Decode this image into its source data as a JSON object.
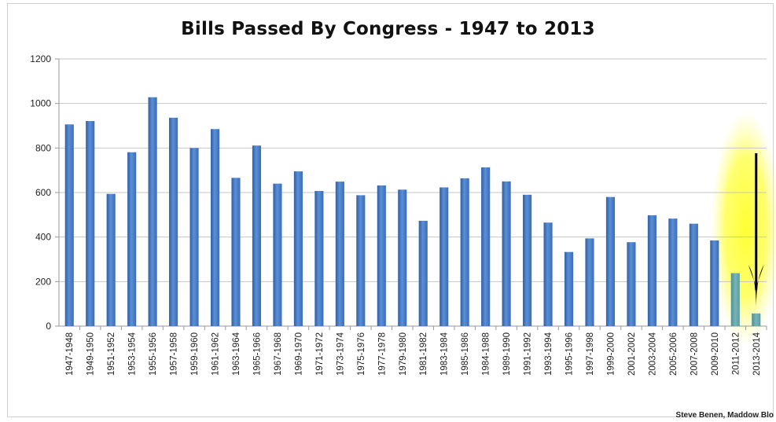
{
  "chart_data": {
    "type": "bar",
    "title": "Bills Passed By Congress - 1947 to 2013",
    "xlabel": "",
    "ylabel": "",
    "ylim": [
      0,
      1200
    ],
    "yticks": [
      0,
      200,
      400,
      600,
      800,
      1000,
      1200
    ],
    "grid": true,
    "legend": "none",
    "colors": {
      "bar": "#4a7ec9",
      "bar_dark": "#2f5fa6",
      "highlighted_bar": "#5f9ea0",
      "highlight_glow": "#ffff00",
      "arrow": "#000000"
    },
    "categories": [
      "1947-1948",
      "1949-1950",
      "1951-1952",
      "1953-1954",
      "1955-1956",
      "1957-1958",
      "1959-1960",
      "1961-1962",
      "1963-1964",
      "1965-1966",
      "1967-1968",
      "1969-1970",
      "1971-1972",
      "1973-1974",
      "1975-1976",
      "1977-1978",
      "1979-1980",
      "1981-1982",
      "1983-1984",
      "1985-1986",
      "1984-1988",
      "1989-1990",
      "1991-1992",
      "1993-1994",
      "1995-1996",
      "1997-1998",
      "1999-2000",
      "2001-2002",
      "2003-2004",
      "2005-2006",
      "2007-2008",
      "2009-2010",
      "2011-2012",
      "2013-2014"
    ],
    "values": [
      906,
      921,
      594,
      781,
      1028,
      936,
      800,
      885,
      666,
      811,
      640,
      695,
      607,
      649,
      588,
      632,
      613,
      473,
      623,
      664,
      713,
      650,
      590,
      465,
      333,
      394,
      580,
      377,
      498,
      483,
      460,
      385,
      238,
      57
    ],
    "highlighted": [
      "2011-2012",
      "2013-2014"
    ],
    "annotation": "downward arrow pointing at 2013-2014"
  },
  "credit": "Steve Benen, Maddow Blo"
}
